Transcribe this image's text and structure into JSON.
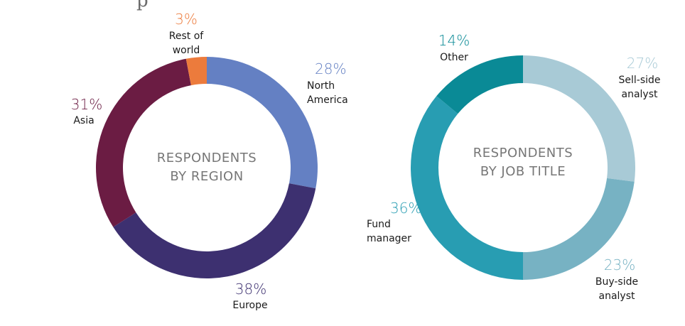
{
  "header": {
    "fragment": "p"
  },
  "chart_data": [
    {
      "type": "pie",
      "center_label": [
        "RESPONDENTS",
        "BY REGION"
      ],
      "slices": [
        {
          "name": "North America",
          "label_lines": [
            "North",
            "America"
          ],
          "value": 28,
          "pct_label": "28%",
          "color": "#6480c3"
        },
        {
          "name": "Europe",
          "label_lines": [
            "Europe"
          ],
          "value": 38,
          "pct_label": "38%",
          "color": "#3d3070"
        },
        {
          "name": "Asia",
          "label_lines": [
            "Asia"
          ],
          "value": 31,
          "pct_label": "31%",
          "color": "#6b1c43"
        },
        {
          "name": "Rest of world",
          "label_lines": [
            "Rest of",
            "world"
          ],
          "value": 3,
          "pct_label": "3%",
          "color": "#ec7b3c"
        }
      ]
    },
    {
      "type": "pie",
      "center_label": [
        "RESPONDENTS",
        "BY JOB TITLE"
      ],
      "slices": [
        {
          "name": "Sell-side analyst",
          "label_lines": [
            "Sell-side",
            "analyst"
          ],
          "value": 27,
          "pct_label": "27%",
          "color": "#a8cad6"
        },
        {
          "name": "Buy-side analyst",
          "label_lines": [
            "Buy-side",
            "analyst"
          ],
          "value": 23,
          "pct_label": "23%",
          "color": "#77b2c3"
        },
        {
          "name": "Fund manager",
          "label_lines": [
            "Fund",
            "manager"
          ],
          "value": 36,
          "pct_label": "36%",
          "color": "#289db2"
        },
        {
          "name": "Other",
          "label_lines": [
            "Other"
          ],
          "value": 14,
          "pct_label": "14%",
          "color": "#0a8a96"
        }
      ]
    }
  ]
}
